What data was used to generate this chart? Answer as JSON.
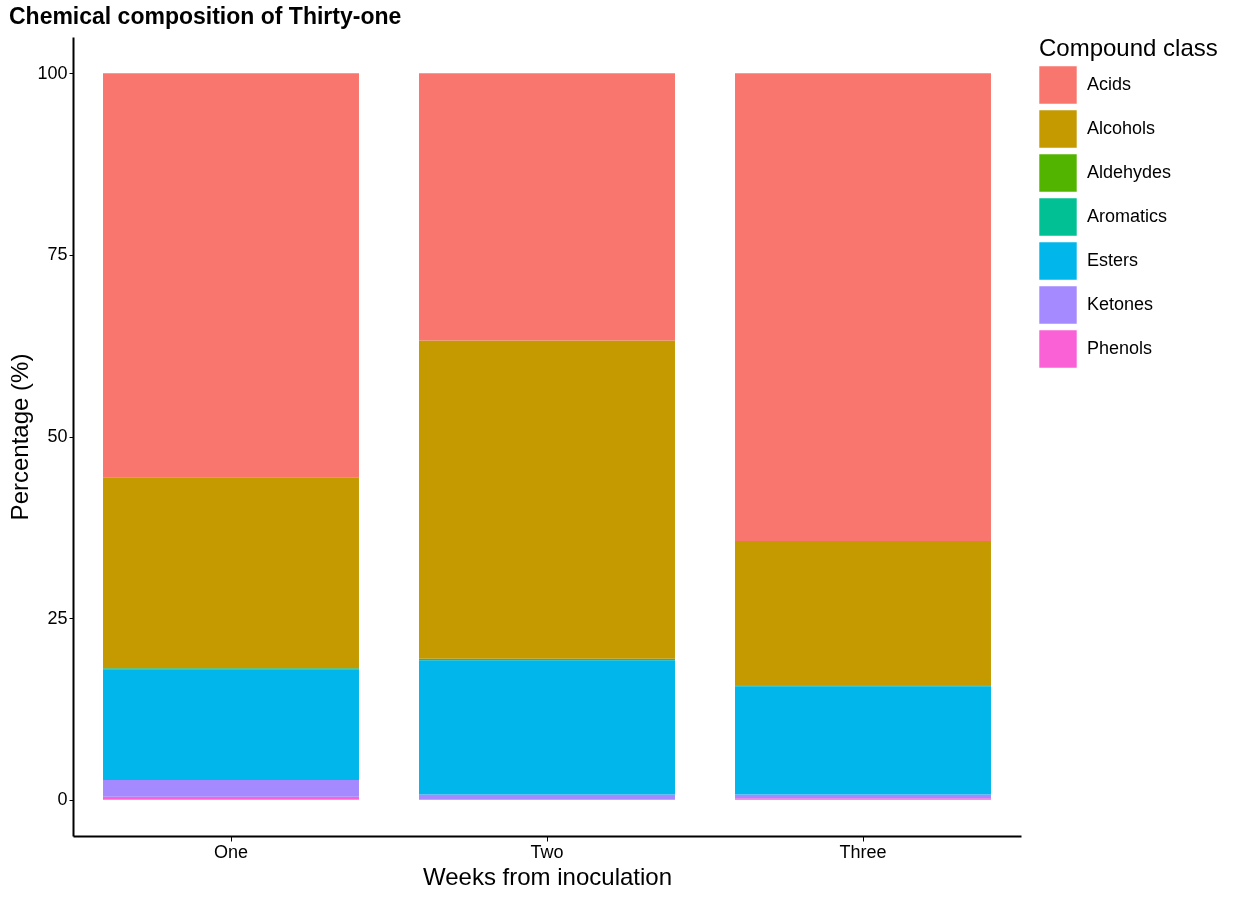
{
  "chart_data": {
    "type": "bar",
    "title": "Chemical composition of Thirty-one",
    "xlabel": "Weeks from inoculation",
    "ylabel": "Percentage (%)",
    "legend_title": "Compound class",
    "categories": [
      "One",
      "Two",
      "Three"
    ],
    "stacked": true,
    "ylim": [
      -5,
      105
    ],
    "yticks": [
      0,
      25,
      50,
      75,
      100
    ],
    "grid": false,
    "legend": "right",
    "series": [
      {
        "name": "Phenols",
        "color": "#fb61d7",
        "values": [
          0.4,
          0.1,
          0.2
        ]
      },
      {
        "name": "Ketones",
        "color": "#a58aff",
        "values": [
          2.3,
          0.6,
          0.5
        ]
      },
      {
        "name": "Esters",
        "color": "#00b6eb",
        "values": [
          15.2,
          18.5,
          14.9
        ]
      },
      {
        "name": "Aromatics",
        "color": "#00c094",
        "values": [
          0.2,
          0.2,
          0.1
        ]
      },
      {
        "name": "Aldehydes",
        "color": "#53b400",
        "values": [
          0,
          0,
          0.1
        ]
      },
      {
        "name": "Alcohols",
        "color": "#c49a00",
        "values": [
          26.3,
          43.8,
          19.8
        ]
      },
      {
        "name": "Acids",
        "color": "#f8766d",
        "values": [
          55.6,
          36.8,
          64.4
        ]
      }
    ]
  }
}
